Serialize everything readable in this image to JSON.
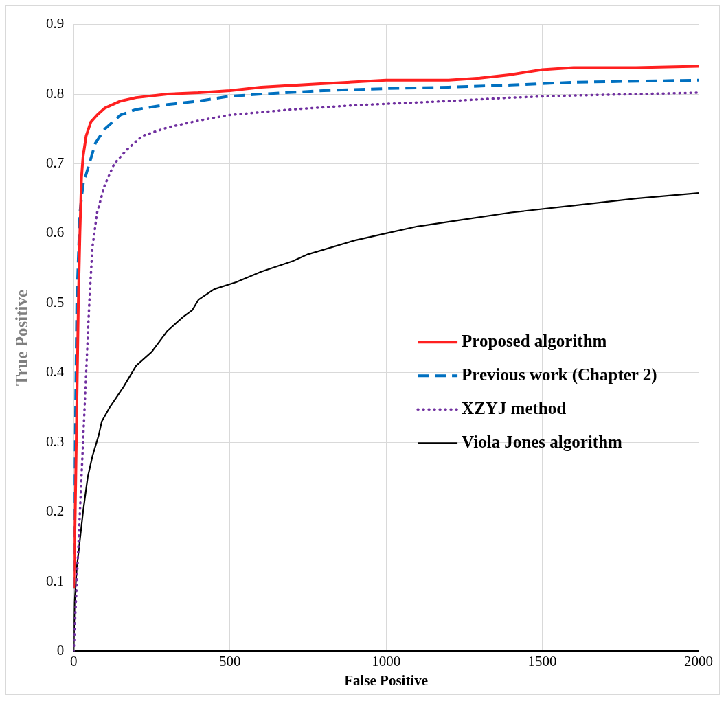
{
  "chart_data": {
    "type": "line",
    "xlabel": "False Positive",
    "ylabel": "True Positive",
    "xlim": [
      0,
      2000
    ],
    "xticks": [
      0,
      500,
      1000,
      1500,
      2000
    ],
    "ylim": [
      0,
      0.9
    ],
    "yticks": [
      0,
      0.1,
      0.2,
      0.3,
      0.4,
      0.5,
      0.6,
      0.7,
      0.8,
      0.9
    ],
    "grid": true,
    "legend": "right",
    "marker": "none",
    "series": [
      {
        "name": "Proposed algorithm",
        "color": "#ff2020",
        "line_style": "solid",
        "x": [
          0,
          5,
          10,
          15,
          20,
          25,
          30,
          40,
          55,
          75,
          100,
          150,
          200,
          300,
          400,
          500,
          600,
          800,
          1000,
          1200,
          1300,
          1400,
          1500,
          1600,
          1800,
          2000
        ],
        "values": [
          0.09,
          0.2,
          0.35,
          0.5,
          0.6,
          0.68,
          0.71,
          0.74,
          0.76,
          0.77,
          0.78,
          0.79,
          0.795,
          0.8,
          0.802,
          0.805,
          0.81,
          0.815,
          0.82,
          0.82,
          0.823,
          0.828,
          0.835,
          0.838,
          0.838,
          0.84
        ]
      },
      {
        "name": "Previous work (Chapter 2)",
        "color": "#0070c0",
        "line_style": "dashed",
        "x": [
          0,
          5,
          10,
          20,
          30,
          50,
          70,
          100,
          150,
          200,
          300,
          400,
          500,
          600,
          800,
          1000,
          1200,
          1400,
          1500,
          1600,
          2000
        ],
        "values": [
          0.09,
          0.3,
          0.5,
          0.63,
          0.67,
          0.7,
          0.73,
          0.75,
          0.77,
          0.778,
          0.785,
          0.79,
          0.797,
          0.8,
          0.805,
          0.808,
          0.81,
          0.813,
          0.815,
          0.817,
          0.82
        ]
      },
      {
        "name": "XZYJ method",
        "color": "#7030a0",
        "line_style": "dotted",
        "x": [
          0,
          10,
          20,
          30,
          40,
          50,
          60,
          75,
          100,
          130,
          170,
          220,
          300,
          400,
          500,
          700,
          900,
          1000,
          1200,
          1400,
          1600,
          2000
        ],
        "values": [
          0,
          0.1,
          0.2,
          0.3,
          0.4,
          0.5,
          0.58,
          0.63,
          0.67,
          0.7,
          0.72,
          0.74,
          0.752,
          0.762,
          0.77,
          0.778,
          0.784,
          0.786,
          0.79,
          0.795,
          0.798,
          0.802
        ]
      },
      {
        "name": "Viola Jones algorithm",
        "color": "#000000",
        "line_style": "solid",
        "x": [
          0,
          3,
          10,
          20,
          30,
          45,
          60,
          80,
          90,
          115,
          160,
          200,
          250,
          300,
          350,
          380,
          400,
          450,
          520,
          600,
          700,
          750,
          900,
          1000,
          1100,
          1250,
          1400,
          1600,
          1800,
          2000
        ],
        "values": [
          0,
          0.07,
          0.12,
          0.16,
          0.2,
          0.25,
          0.28,
          0.31,
          0.33,
          0.35,
          0.38,
          0.41,
          0.43,
          0.46,
          0.48,
          0.49,
          0.505,
          0.52,
          0.53,
          0.545,
          0.56,
          0.57,
          0.59,
          0.6,
          0.61,
          0.62,
          0.63,
          0.64,
          0.65,
          0.658
        ]
      }
    ]
  }
}
